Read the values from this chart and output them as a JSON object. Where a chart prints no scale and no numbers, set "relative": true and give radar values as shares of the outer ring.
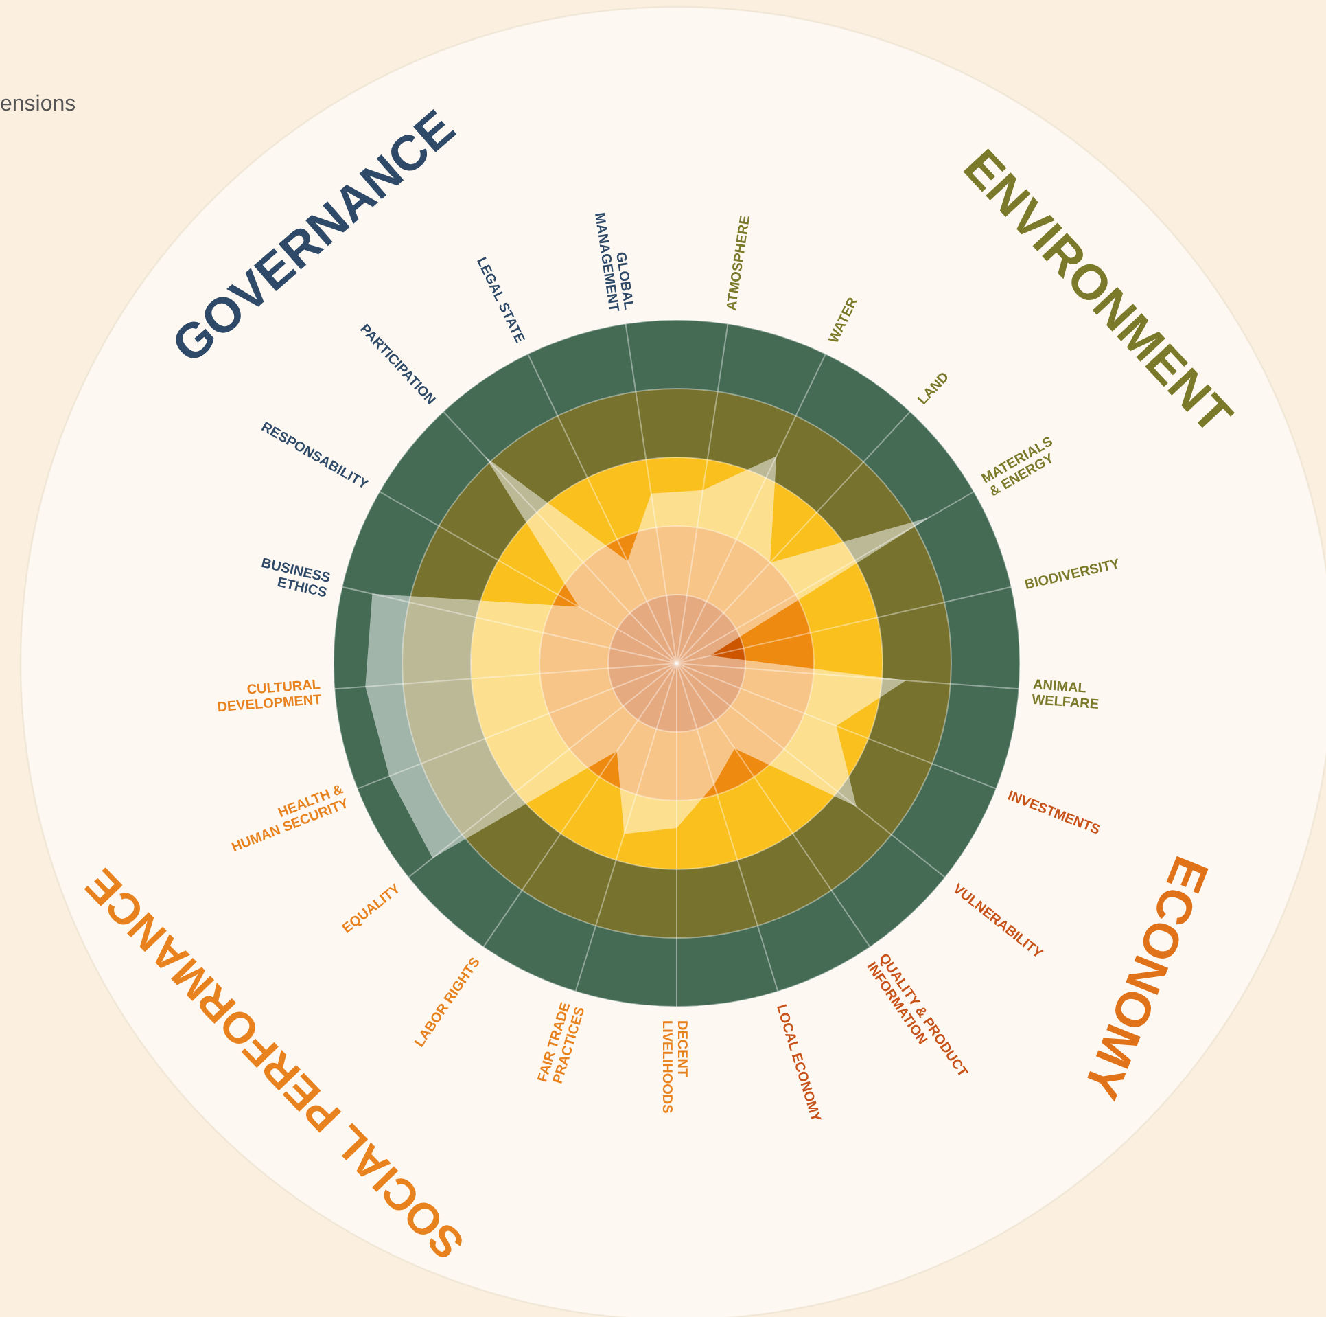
{
  "chart_data": {
    "type": "radar",
    "relative": true,
    "grid": true,
    "annotations": [
      "ensions",
      "GOVERNANCE",
      "ENVIRONMENT",
      "ECONOMY",
      "SOCIAL PERFORMANCE"
    ],
    "categories": [
      "ATMOSPHERE",
      "WATER",
      "LAND",
      "MATERIALS & ENERGY",
      "BIODIVERSITY",
      "ANIMAL WELFARE",
      "INVESTMENTS",
      "VULNERABILITY",
      "QUALITY & PRODUCT INFORMATION",
      "LOCAL ECONOMY",
      "DECENT LIVELIHOODS",
      "FAIR TRADE PRACTICES",
      "LABOR RIGHTS",
      "EQUALITY",
      "HEALTH & HUMAN SECURITY",
      "CULTURAL DEVELOPMENT",
      "BUSINESS ETHICS",
      "RESPONSABILITY",
      "PARTICIPATION",
      "LEGAL STATE",
      "GLOBAL MANAGEMENT"
    ],
    "series": [
      {
        "color": "#ffffff",
        "values": [
          0.51,
          0.67,
          0.4,
          0.85,
          0.1,
          0.67,
          0.5,
          0.67,
          0.3,
          0.37,
          0.48,
          0.52,
          0.31,
          0.91,
          0.9,
          0.91,
          0.91,
          0.33,
          0.82,
          0.33,
          0.5
        ]
      }
    ]
  }
}
